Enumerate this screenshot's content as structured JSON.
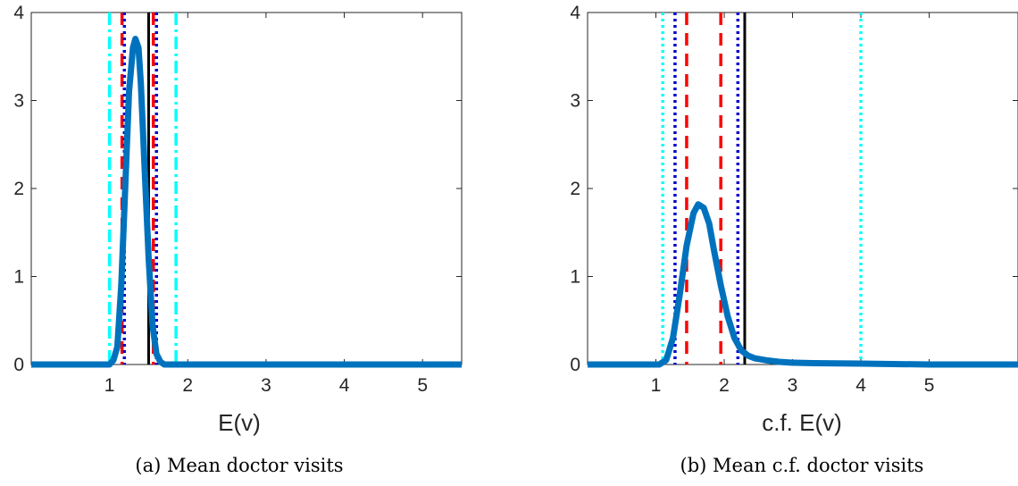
{
  "chart_data": [
    {
      "type": "line",
      "caption": "(a) Mean doctor visits",
      "xlabel": "E(v)",
      "ylabel": "",
      "xlim": [
        0,
        5.5
      ],
      "ylim": [
        0,
        4
      ],
      "xticks": [
        1,
        2,
        3,
        4,
        5
      ],
      "yticks": [
        0,
        1,
        2,
        3,
        4
      ],
      "density": {
        "color": "#0072BD",
        "x": [
          0,
          0.9,
          1.0,
          1.05,
          1.1,
          1.15,
          1.2,
          1.25,
          1.3,
          1.33,
          1.37,
          1.4,
          1.45,
          1.5,
          1.55,
          1.6,
          1.65,
          1.7,
          1.8,
          2.0,
          3.0,
          4.0,
          5.5
        ],
        "y": [
          0,
          0,
          0.0,
          0.05,
          0.2,
          0.9,
          2.0,
          3.1,
          3.6,
          3.7,
          3.6,
          3.2,
          2.2,
          1.2,
          0.45,
          0.12,
          0.03,
          0.0,
          0.0,
          0,
          0,
          0,
          0
        ]
      },
      "vlines": [
        {
          "x": 1.0,
          "style": "dashdot",
          "color": "#00FFFF"
        },
        {
          "x": 1.85,
          "style": "dashdot",
          "color": "#00FFFF"
        },
        {
          "x": 1.16,
          "style": "dashed",
          "color": "#FF0000"
        },
        {
          "x": 1.56,
          "style": "dashed",
          "color": "#FF0000"
        },
        {
          "x": 1.19,
          "style": "dotted",
          "color": "#0000CD"
        },
        {
          "x": 1.6,
          "style": "dotted",
          "color": "#0000CD"
        },
        {
          "x": 1.5,
          "style": "solid",
          "color": "#000000"
        }
      ]
    },
    {
      "type": "line",
      "caption": "(b)  Mean c.f. doctor visits",
      "xlabel": "c.f. E(v)",
      "ylabel": "",
      "xlim": [
        0,
        6.3
      ],
      "ylim": [
        0,
        4
      ],
      "xticks": [
        1,
        2,
        3,
        4,
        5
      ],
      "yticks": [
        0,
        1,
        2,
        3,
        4
      ],
      "density": {
        "color": "#0072BD",
        "x": [
          0,
          1.05,
          1.15,
          1.25,
          1.35,
          1.45,
          1.55,
          1.62,
          1.7,
          1.78,
          1.85,
          1.95,
          2.05,
          2.15,
          2.25,
          2.35,
          2.45,
          2.6,
          2.8,
          3.0,
          3.3,
          4.0,
          5.0,
          6.3
        ],
        "y": [
          0,
          0,
          0.05,
          0.3,
          0.8,
          1.35,
          1.72,
          1.82,
          1.78,
          1.6,
          1.3,
          0.9,
          0.55,
          0.3,
          0.16,
          0.1,
          0.07,
          0.05,
          0.03,
          0.02,
          0.015,
          0.01,
          0.0,
          0.0
        ]
      },
      "vlines": [
        {
          "x": 1.1,
          "style": "dotted",
          "color": "#00FFFF"
        },
        {
          "x": 4.0,
          "style": "dotted",
          "color": "#00FFFF"
        },
        {
          "x": 1.28,
          "style": "dotted",
          "color": "#0000CD"
        },
        {
          "x": 2.2,
          "style": "dotted",
          "color": "#0000CD"
        },
        {
          "x": 1.45,
          "style": "dashed",
          "color": "#FF0000"
        },
        {
          "x": 1.95,
          "style": "dashed",
          "color": "#FF0000"
        },
        {
          "x": 2.3,
          "style": "solid",
          "color": "#000000"
        }
      ]
    }
  ]
}
